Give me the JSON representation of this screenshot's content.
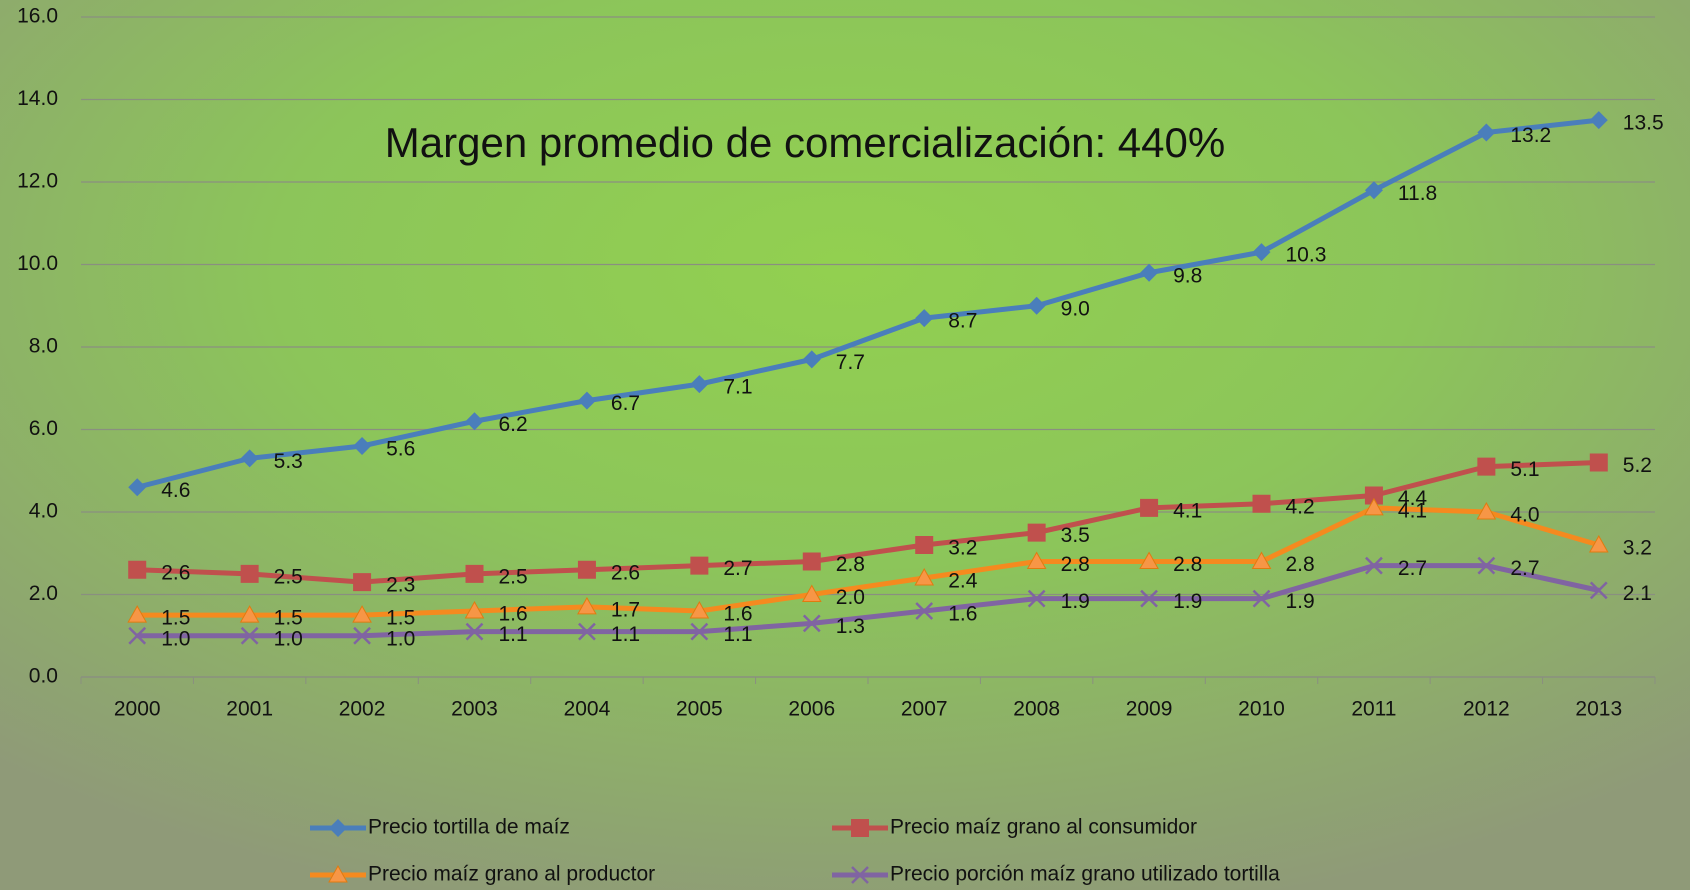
{
  "chart_data": {
    "type": "line",
    "annotation": "Margen promedio de comercialización: 440%",
    "categories": [
      "2000",
      "2001",
      "2002",
      "2003",
      "2004",
      "2005",
      "2006",
      "2007",
      "2008",
      "2009",
      "2010",
      "2011",
      "2012",
      "2013"
    ],
    "ylim": [
      0,
      16
    ],
    "yticks": [
      {
        "value": 0,
        "label": "0.0"
      },
      {
        "value": 2,
        "label": "2.0"
      },
      {
        "value": 4,
        "label": "4.0"
      },
      {
        "value": 6,
        "label": "6.0"
      },
      {
        "value": 8,
        "label": "8.0"
      },
      {
        "value": 10,
        "label": "10.0"
      },
      {
        "value": 12,
        "label": "12.0"
      },
      {
        "value": 14,
        "label": "14.0"
      },
      {
        "value": 16,
        "label": "16.0"
      }
    ],
    "grid": true,
    "legend": "bottom",
    "series": [
      {
        "name": "Precio tortilla de maíz",
        "color": "#4a7ebb",
        "marker": "diamond",
        "values": [
          4.6,
          5.3,
          5.6,
          6.2,
          6.7,
          7.1,
          7.7,
          8.7,
          9.0,
          9.8,
          10.3,
          11.8,
          13.2,
          13.5
        ],
        "value_labels": [
          "4.6",
          "5.3",
          "5.6",
          "6.2",
          "6.7",
          "7.1",
          "7.7",
          "8.7",
          "9.0",
          "9.8",
          "10.3",
          "11.8",
          "13.2",
          "13.5"
        ]
      },
      {
        "name": "Precio maíz grano al consumidor",
        "color": "#c0504d",
        "marker": "square",
        "values": [
          2.6,
          2.5,
          2.3,
          2.5,
          2.6,
          2.7,
          2.8,
          3.2,
          3.5,
          4.1,
          4.2,
          4.4,
          5.1,
          5.2
        ],
        "value_labels": [
          "2.6",
          "2.5",
          "2.3",
          "2.5",
          "2.6",
          "2.7",
          "2.8",
          "3.2",
          "3.5",
          "4.1",
          "4.2",
          "4.4",
          "5.1",
          "5.2"
        ]
      },
      {
        "name": "Precio maíz grano al productor",
        "color": "#f58a1f",
        "marker": "triangle",
        "values": [
          1.5,
          1.5,
          1.5,
          1.6,
          1.7,
          1.6,
          2.0,
          2.4,
          2.8,
          2.8,
          2.8,
          4.1,
          4.0,
          3.2
        ],
        "value_labels": [
          "1.5",
          "1.5",
          "1.5",
          "1.6",
          "1.7",
          "1.6",
          "2.0",
          "2.4",
          "2.8",
          "2.8",
          "2.8",
          "4.1",
          "4.0",
          "3.2"
        ]
      },
      {
        "name": "Precio porción maíz grano utilizado tortilla",
        "color": "#8064a2",
        "marker": "x",
        "values": [
          1.0,
          1.0,
          1.0,
          1.1,
          1.1,
          1.1,
          1.3,
          1.6,
          1.9,
          1.9,
          1.9,
          2.7,
          2.7,
          2.1
        ],
        "value_labels": [
          "1.0",
          "1.0",
          "1.0",
          "1.1",
          "1.1",
          "1.1",
          "1.3",
          "1.6",
          "1.9",
          "1.9",
          "1.9",
          "2.7",
          "2.7",
          "2.1"
        ]
      }
    ]
  }
}
